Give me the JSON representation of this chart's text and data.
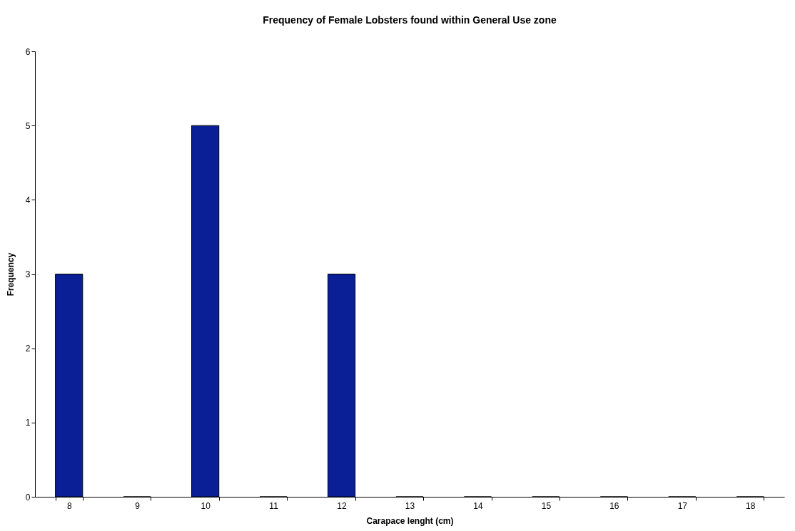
{
  "chart_data": {
    "type": "bar",
    "title": "Frequency of Female Lobsters found within General Use zone",
    "xlabel": "Carapace lenght (cm)",
    "ylabel": "Frequency",
    "categories": [
      "8",
      "9",
      "10",
      "11",
      "12",
      "13",
      "14",
      "15",
      "16",
      "17",
      "18"
    ],
    "values": [
      3,
      0,
      5,
      0,
      3,
      0,
      0,
      0,
      0,
      0,
      0
    ],
    "color": "#0a1e96",
    "ylim": [
      0,
      6
    ],
    "yticks": [
      0,
      1,
      2,
      3,
      4,
      5,
      6
    ],
    "grid": false
  }
}
